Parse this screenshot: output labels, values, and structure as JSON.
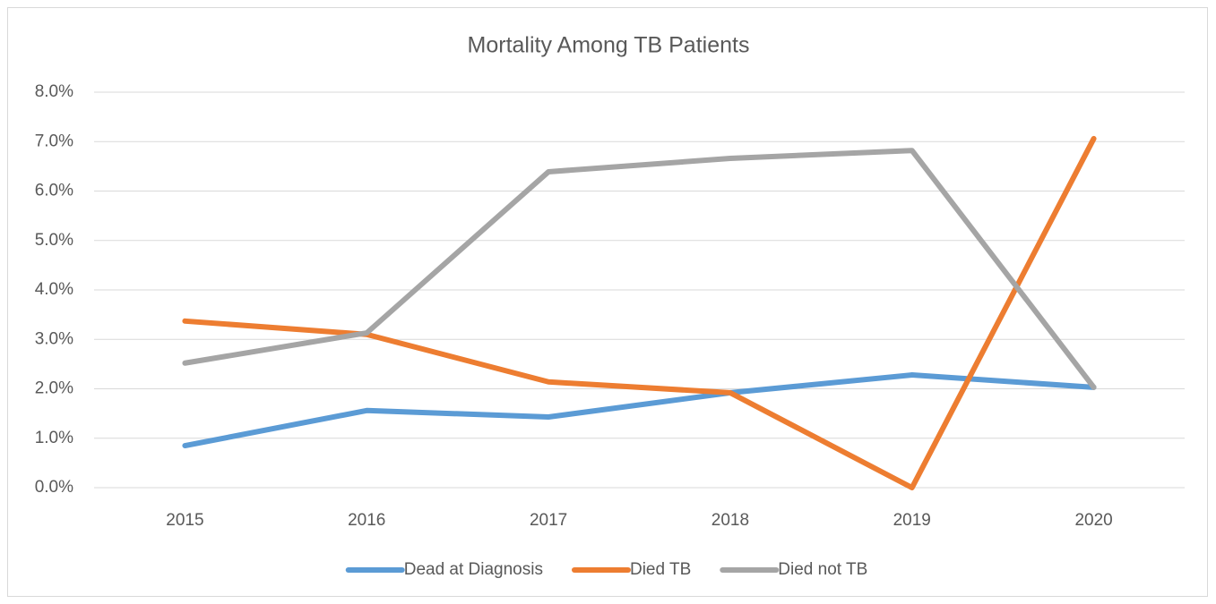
{
  "chart_data": {
    "type": "line",
    "title": "Mortality Among TB Patients",
    "categories": [
      "2015",
      "2016",
      "2017",
      "2018",
      "2019",
      "2020"
    ],
    "series": [
      {
        "name": "Dead at Diagnosis",
        "color": "#5b9bd5",
        "values": [
          0.85,
          1.56,
          1.43,
          1.92,
          2.28,
          2.03
        ]
      },
      {
        "name": "Died TB",
        "color": "#ed7d31",
        "values": [
          3.37,
          3.1,
          2.14,
          1.92,
          0,
          7.06
        ]
      },
      {
        "name": "Died not TB",
        "color": "#a5a5a5",
        "values": [
          2.52,
          3.13,
          6.39,
          6.66,
          6.82,
          2.03
        ]
      }
    ],
    "ylim": [
      0,
      8
    ],
    "yticks": [
      {
        "value": 0,
        "label": "0.0%"
      },
      {
        "value": 1,
        "label": "1.0%"
      },
      {
        "value": 2,
        "label": "2.0%"
      },
      {
        "value": 3,
        "label": "3.0%"
      },
      {
        "value": 4,
        "label": "4.0%"
      },
      {
        "value": 5,
        "label": "5.0%"
      },
      {
        "value": 6,
        "label": "6.0%"
      },
      {
        "value": 7,
        "label": "7.0%"
      },
      {
        "value": 8,
        "label": "8.0%"
      }
    ],
    "grid": true,
    "legend": "bottom"
  }
}
